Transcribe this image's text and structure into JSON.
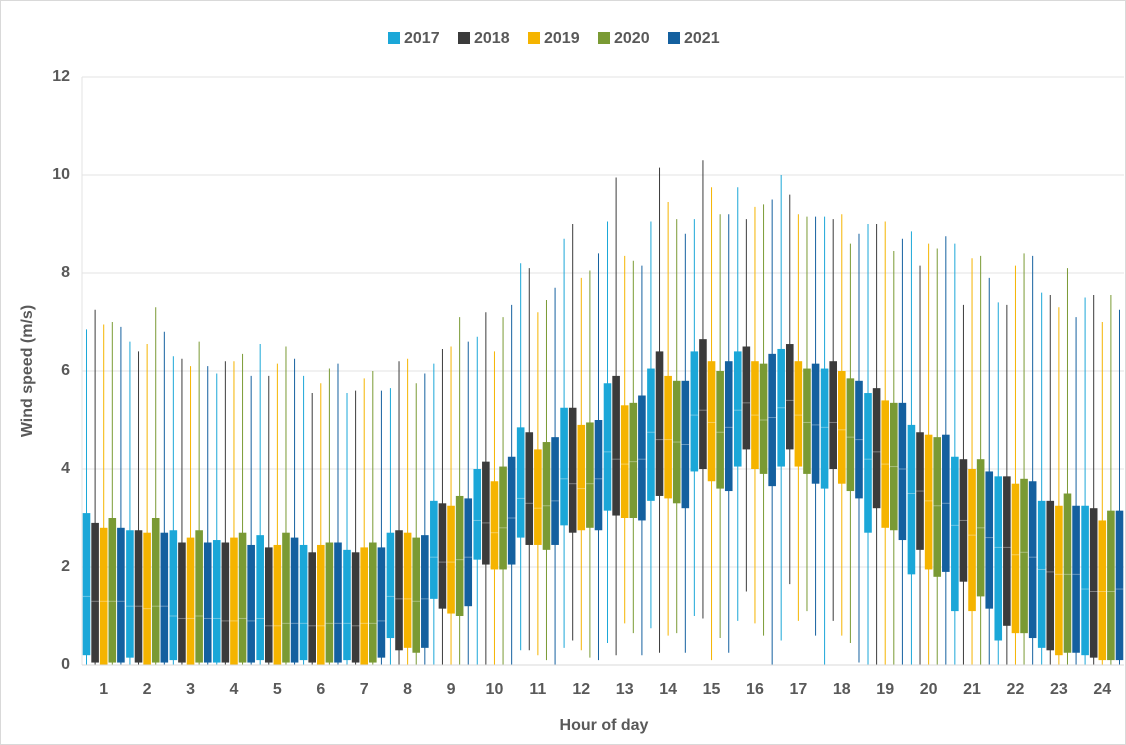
{
  "chart_data": {
    "type": "box",
    "x_label": "Hour of day",
    "y_label": "Wind speed (m/s)",
    "categories": [
      "1",
      "2",
      "3",
      "4",
      "5",
      "6",
      "7",
      "8",
      "9",
      "10",
      "11",
      "12",
      "13",
      "14",
      "15",
      "16",
      "17",
      "18",
      "19",
      "20",
      "21",
      "22",
      "23",
      "24"
    ],
    "ylim": [
      0,
      12
    ],
    "yticks": [
      0,
      2,
      4,
      6,
      8,
      10,
      12
    ],
    "grid": true,
    "legend": "top",
    "series": [
      {
        "name": "2017",
        "color": "#1ba7d8",
        "min": [
          0,
          0,
          0,
          0,
          0,
          0,
          0,
          0,
          0,
          0,
          0.3,
          0.35,
          0.45,
          0.75,
          1.0,
          0.9,
          0.5,
          0,
          0,
          0,
          0,
          0,
          0,
          0
        ],
        "q1": [
          0.2,
          0.15,
          0.1,
          0.05,
          0.1,
          0.1,
          0.1,
          0.55,
          1.35,
          2.15,
          2.6,
          2.85,
          3.15,
          3.35,
          3.95,
          4.05,
          4.05,
          3.6,
          2.7,
          1.85,
          1.1,
          0.5,
          0.35,
          0.2
        ],
        "median": [
          1.4,
          1.2,
          1.0,
          0.95,
          0.95,
          0.85,
          0.85,
          1.4,
          2.2,
          2.95,
          3.4,
          3.8,
          4.35,
          4.75,
          5.1,
          5.2,
          5.25,
          4.85,
          4.2,
          3.5,
          2.85,
          2.4,
          1.95,
          1.55
        ],
        "q3": [
          3.1,
          2.75,
          2.75,
          2.55,
          2.65,
          2.45,
          2.35,
          2.7,
          3.35,
          4.0,
          4.85,
          5.25,
          5.75,
          6.05,
          6.4,
          6.4,
          6.45,
          6.05,
          5.55,
          4.9,
          4.25,
          3.85,
          3.35,
          3.25
        ],
        "max": [
          6.85,
          6.6,
          6.3,
          5.95,
          6.55,
          5.9,
          5.55,
          5.65,
          6.15,
          6.7,
          8.2,
          8.7,
          9.05,
          9.05,
          9.1,
          9.75,
          10.0,
          9.15,
          9.0,
          8.85,
          8.6,
          7.4,
          7.6,
          7.5
        ]
      },
      {
        "name": "2018",
        "color": "#3b3b3b",
        "min": [
          0,
          0,
          0,
          0,
          0,
          0,
          0,
          0,
          0,
          0,
          0.3,
          0.5,
          0.2,
          0.25,
          0.95,
          1.5,
          1.65,
          0.9,
          0,
          0,
          0,
          0,
          0,
          0
        ],
        "q1": [
          0.05,
          0.05,
          0.05,
          0.05,
          0.05,
          0.05,
          0.05,
          0.3,
          1.15,
          2.05,
          2.45,
          2.7,
          3.05,
          3.45,
          4.0,
          4.4,
          4.4,
          4.0,
          3.2,
          2.35,
          1.7,
          0.8,
          0.3,
          0.15
        ],
        "median": [
          1.3,
          1.2,
          0.95,
          0.9,
          0.8,
          0.8,
          0.8,
          1.35,
          2.1,
          2.9,
          3.3,
          3.7,
          4.2,
          4.6,
          5.2,
          5.35,
          5.4,
          4.95,
          4.35,
          3.55,
          2.95,
          2.4,
          1.9,
          1.5
        ],
        "q3": [
          2.9,
          2.75,
          2.5,
          2.5,
          2.4,
          2.3,
          2.3,
          2.75,
          3.3,
          4.15,
          4.75,
          5.25,
          5.9,
          6.4,
          6.65,
          6.5,
          6.55,
          6.2,
          5.65,
          4.75,
          4.2,
          3.85,
          3.35,
          3.2
        ],
        "max": [
          7.25,
          6.4,
          6.25,
          6.2,
          5.9,
          5.55,
          5.6,
          6.2,
          6.45,
          7.2,
          8.1,
          9.0,
          9.95,
          10.15,
          10.3,
          9.1,
          9.6,
          9.1,
          9.0,
          8.15,
          7.35,
          7.35,
          7.55,
          7.55
        ]
      },
      {
        "name": "2019",
        "color": "#f5b400",
        "min": [
          0,
          0,
          0,
          0,
          0,
          0,
          0,
          0,
          0,
          0,
          0.2,
          0.3,
          0.85,
          0.6,
          0.1,
          0.85,
          0.9,
          0.6,
          0,
          0,
          0,
          0,
          0,
          0
        ],
        "q1": [
          0,
          0,
          0,
          0,
          0,
          0,
          0,
          0.35,
          1.05,
          1.95,
          2.45,
          2.75,
          3.0,
          3.4,
          3.75,
          4.0,
          4.05,
          3.7,
          2.8,
          1.95,
          1.1,
          0.65,
          0.2,
          0.1
        ],
        "median": [
          1.3,
          1.15,
          0.95,
          0.9,
          0.8,
          0.8,
          0.85,
          1.35,
          2.1,
          2.7,
          3.2,
          3.6,
          4.1,
          4.6,
          4.95,
          5.1,
          5.1,
          4.8,
          4.1,
          3.35,
          2.65,
          2.25,
          1.85,
          1.5
        ],
        "q3": [
          2.8,
          2.7,
          2.6,
          2.6,
          2.45,
          2.45,
          2.4,
          2.7,
          3.25,
          3.75,
          4.4,
          4.9,
          5.3,
          5.9,
          6.2,
          6.2,
          6.2,
          6.0,
          5.4,
          4.7,
          4.0,
          3.7,
          3.25,
          2.95
        ],
        "max": [
          6.95,
          6.55,
          6.1,
          6.2,
          6.15,
          5.75,
          5.85,
          6.25,
          6.5,
          6.4,
          7.2,
          7.9,
          8.35,
          9.45,
          9.75,
          9.35,
          9.2,
          9.2,
          9.05,
          8.6,
          8.3,
          8.15,
          7.3,
          7.0
        ]
      },
      {
        "name": "2020",
        "color": "#7a9a34",
        "min": [
          0,
          0,
          0,
          0,
          0,
          0,
          0,
          0,
          0,
          0,
          0.1,
          0.15,
          0.65,
          0.65,
          0.55,
          0.6,
          1.1,
          0.45,
          0,
          0,
          0,
          0,
          0,
          0
        ],
        "q1": [
          0.05,
          0.05,
          0.05,
          0.05,
          0.05,
          0.05,
          0.05,
          0.25,
          1.0,
          1.95,
          2.35,
          2.8,
          3.0,
          3.3,
          3.6,
          3.9,
          3.9,
          3.55,
          2.75,
          1.8,
          1.4,
          0.65,
          0.25,
          0.1
        ],
        "median": [
          1.3,
          1.2,
          1.0,
          0.95,
          0.85,
          0.85,
          0.85,
          1.3,
          2.15,
          2.8,
          3.25,
          3.7,
          4.15,
          4.55,
          4.75,
          5.0,
          4.95,
          4.65,
          4.05,
          3.25,
          2.8,
          2.3,
          1.85,
          1.5
        ],
        "q3": [
          3.0,
          3.0,
          2.75,
          2.7,
          2.7,
          2.5,
          2.5,
          2.6,
          3.45,
          4.05,
          4.55,
          4.95,
          5.35,
          5.8,
          6.0,
          6.15,
          6.05,
          5.85,
          5.35,
          4.65,
          4.2,
          3.8,
          3.5,
          3.15
        ],
        "max": [
          7.0,
          7.3,
          6.6,
          6.35,
          6.5,
          6.05,
          6.0,
          5.75,
          7.1,
          7.1,
          7.45,
          8.05,
          8.25,
          9.1,
          9.2,
          9.4,
          9.15,
          8.6,
          8.45,
          8.5,
          8.35,
          8.4,
          8.1,
          7.55
        ]
      },
      {
        "name": "2021",
        "color": "#14609f",
        "min": [
          0,
          0,
          0,
          0,
          0,
          0,
          0,
          0,
          0,
          0,
          0,
          0.1,
          0.2,
          0.25,
          0.25,
          0,
          0.6,
          0.05,
          0,
          0,
          0,
          0,
          0,
          0
        ],
        "q1": [
          0.05,
          0.05,
          0.05,
          0.05,
          0.05,
          0.05,
          0.15,
          0.35,
          1.2,
          2.05,
          2.45,
          2.75,
          2.95,
          3.2,
          3.55,
          3.65,
          3.7,
          3.4,
          2.55,
          1.9,
          1.15,
          0.55,
          0.25,
          0.1
        ],
        "median": [
          1.3,
          1.2,
          0.95,
          0.9,
          0.85,
          0.85,
          0.9,
          1.35,
          2.2,
          3.0,
          3.35,
          3.8,
          4.2,
          4.5,
          4.85,
          5.05,
          4.9,
          4.6,
          4.0,
          3.3,
          2.6,
          2.2,
          1.85,
          1.55
        ],
        "q3": [
          2.8,
          2.7,
          2.5,
          2.45,
          2.6,
          2.5,
          2.4,
          2.65,
          3.4,
          4.25,
          4.65,
          5.0,
          5.5,
          5.8,
          6.2,
          6.35,
          6.15,
          5.8,
          5.35,
          4.7,
          3.95,
          3.75,
          3.25,
          3.15
        ],
        "max": [
          6.9,
          6.8,
          6.1,
          5.9,
          6.25,
          6.15,
          5.6,
          5.95,
          6.6,
          7.35,
          7.7,
          8.4,
          8.15,
          8.8,
          9.2,
          9.5,
          9.15,
          8.8,
          8.7,
          8.75,
          7.9,
          8.35,
          7.1,
          7.25
        ]
      }
    ]
  }
}
